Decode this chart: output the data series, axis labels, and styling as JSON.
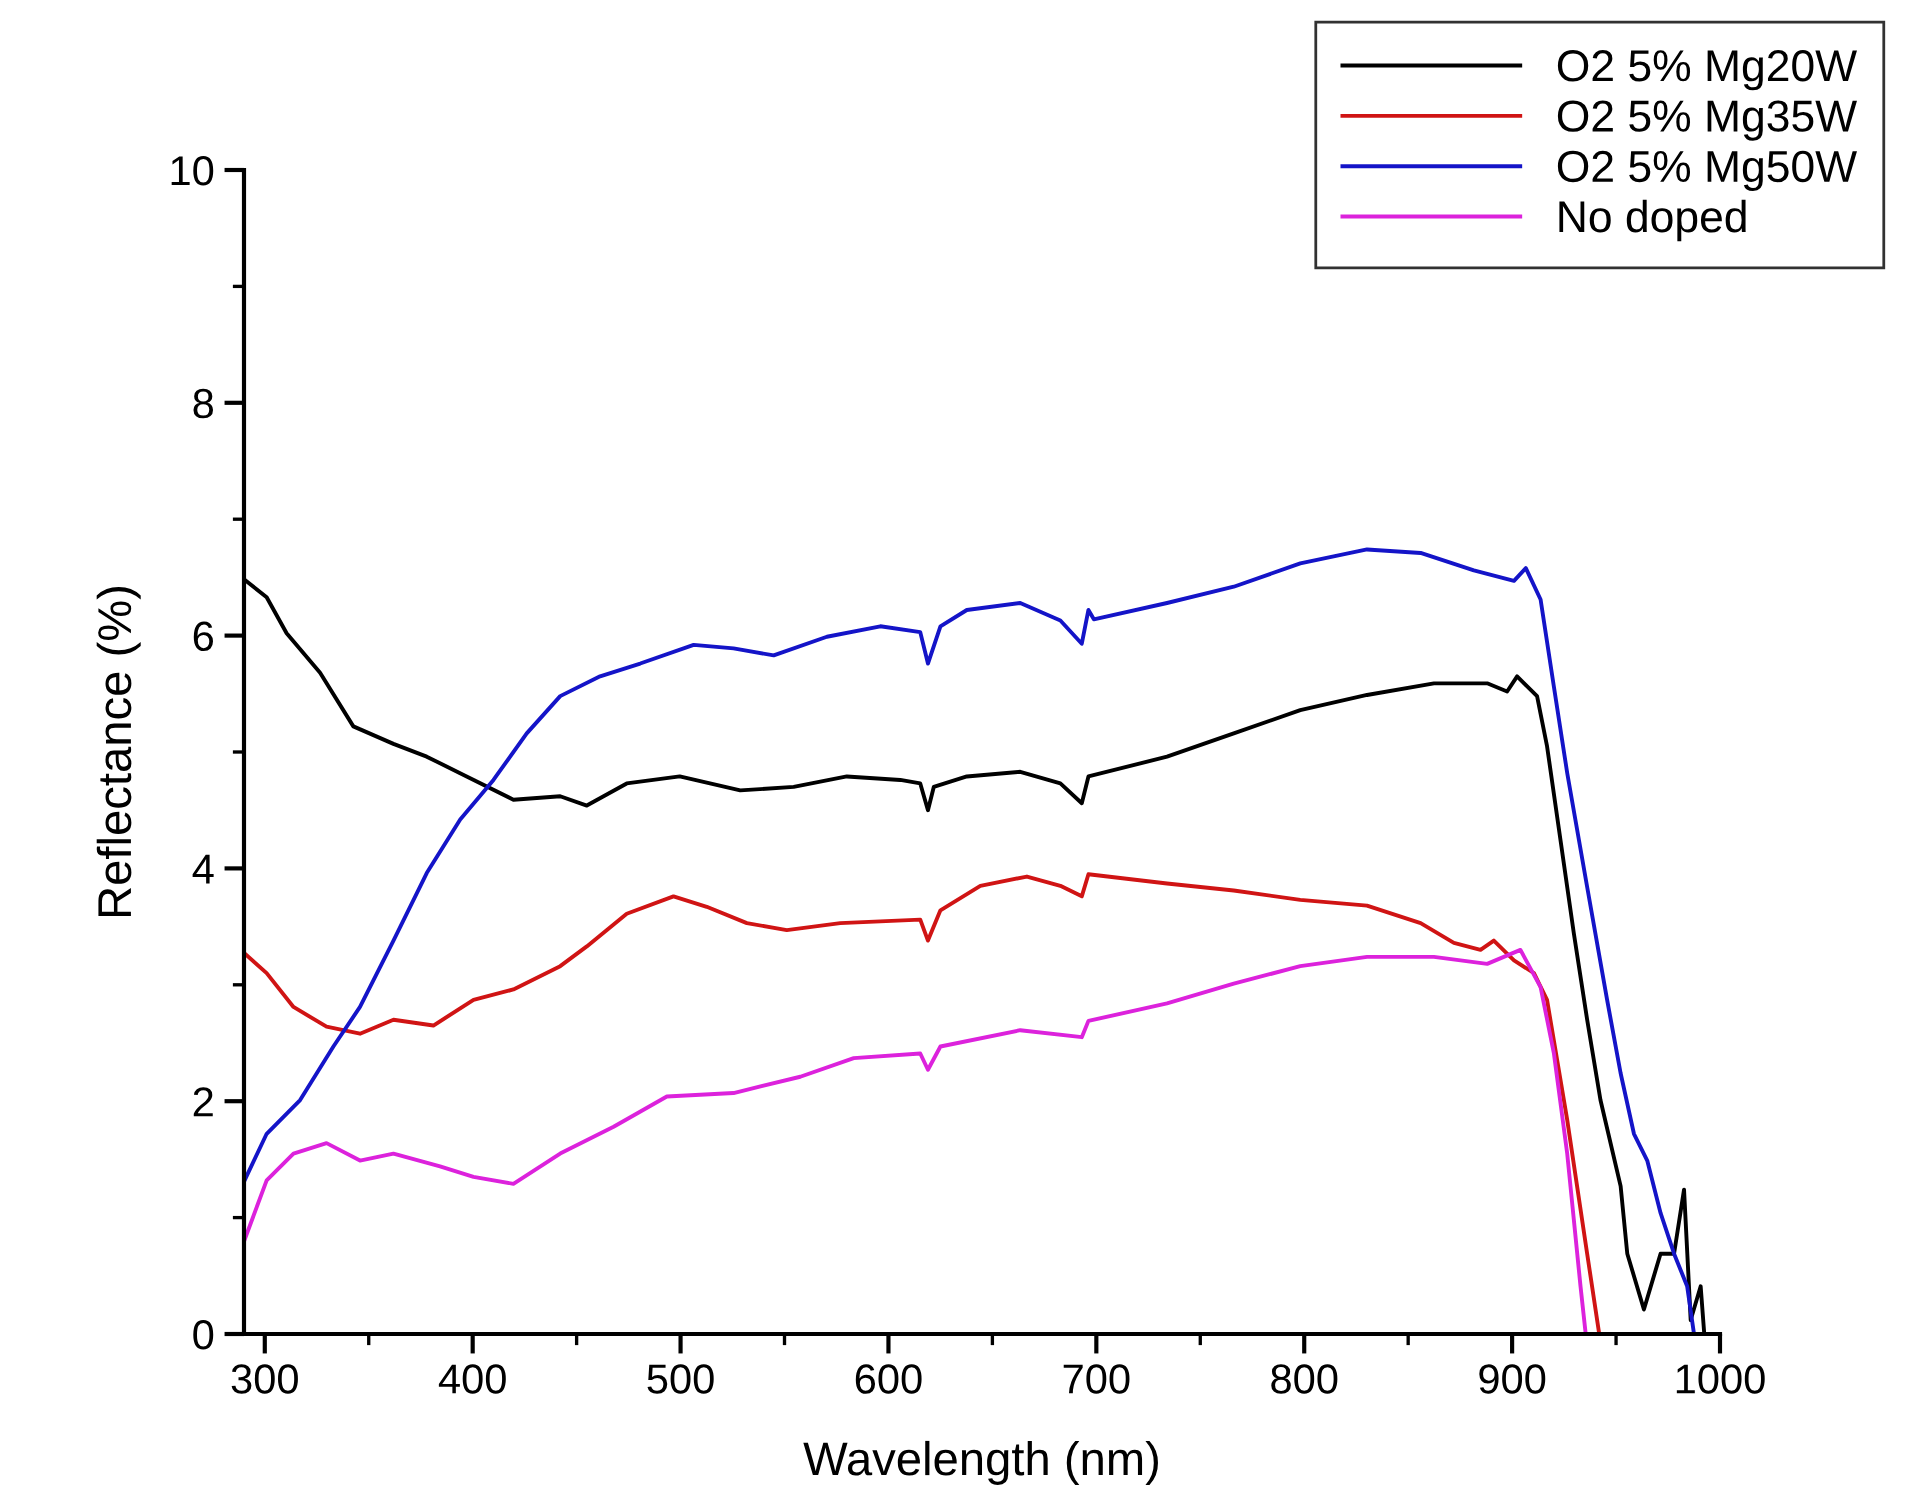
{
  "chart_data": {
    "type": "line",
    "xlabel": "Wavelength (nm)",
    "ylabel": "Reflectance (%)",
    "xlim": [
      290,
      1000
    ],
    "xticks": [
      300,
      400,
      500,
      600,
      700,
      800,
      900,
      1000
    ],
    "ylim": [
      0,
      10
    ],
    "yticks": [
      0,
      2,
      4,
      6,
      8,
      10
    ],
    "grid": false,
    "legend": "top right",
    "marker": "none",
    "line_style": "solid",
    "series": [
      {
        "name": "O2 5% Mg20W",
        "color": "#000000",
        "x": [
          290.3,
          300.9,
          310.5,
          326.6,
          342.6,
          361.9,
          377.9,
          397.1,
          419.6,
          442.1,
          454.9,
          474.1,
          499.6,
          528.7,
          554.4,
          580,
          605.7,
          615.3,
          619,
          621.8,
          637.7,
          663.4,
          682.7,
          693,
          696.2,
          734,
          766.1,
          798.1,
          830.2,
          862.4,
          888,
          897.6,
          902.4,
          912,
          916.8,
          923.3,
          929.7,
          936.1,
          942.5,
          952.2,
          955.4,
          963.4,
          971.4,
          977.9,
          982.7,
          985.9,
          990.7,
          992.3
        ],
        "values": [
          6.48,
          6.33,
          6.02,
          5.68,
          5.22,
          5.07,
          4.96,
          4.79,
          4.59,
          4.62,
          4.54,
          4.73,
          4.79,
          4.67,
          4.7,
          4.79,
          4.76,
          4.73,
          4.5,
          4.7,
          4.79,
          4.83,
          4.73,
          4.56,
          4.79,
          4.96,
          5.16,
          5.36,
          5.49,
          5.59,
          5.59,
          5.52,
          5.65,
          5.48,
          5.05,
          4.24,
          3.44,
          2.7,
          2.01,
          1.27,
          0.69,
          0.21,
          0.69,
          0.69,
          1.24,
          0.12,
          0.41,
          0.03
        ]
      },
      {
        "name": "O2 5% Mg35W",
        "color": "#d01414",
        "x": [
          290.3,
          300.9,
          313.8,
          329.7,
          345.8,
          361.9,
          381.1,
          400.4,
          419.6,
          442.1,
          454.9,
          474.1,
          496.6,
          512.6,
          531.9,
          551.1,
          576.8,
          615.3,
          619,
          625,
          644.2,
          666.6,
          682.7,
          693,
          696.2,
          734,
          766.1,
          798.1,
          830.2,
          856,
          872,
          884.8,
          891.2,
          900.9,
          910.5,
          916.8,
          926.5,
          936.1,
          941.9
        ],
        "values": [
          3.27,
          3.1,
          2.81,
          2.64,
          2.58,
          2.7,
          2.65,
          2.87,
          2.96,
          3.16,
          3.33,
          3.61,
          3.76,
          3.67,
          3.53,
          3.47,
          3.53,
          3.56,
          3.38,
          3.64,
          3.85,
          3.93,
          3.85,
          3.76,
          3.95,
          3.87,
          3.81,
          3.73,
          3.68,
          3.53,
          3.36,
          3.3,
          3.38,
          3.21,
          3.1,
          2.87,
          1.84,
          0.69,
          0
        ]
      },
      {
        "name": "O2 5% Mg50W",
        "color": "#1414c8",
        "x": [
          290.3,
          300.9,
          317,
          333,
          345.8,
          361.9,
          377.9,
          394,
          410,
          426,
          442.1,
          461.3,
          480.6,
          506.3,
          525.5,
          544.8,
          570.4,
          596.1,
          615.3,
          619,
          625,
          637.7,
          663.4,
          682.7,
          693,
          696.2,
          698.8,
          734,
          766.1,
          798.1,
          830.2,
          856,
          881.6,
          900.9,
          906.6,
          913.7,
          920.1,
          926.5,
          936.1,
          945.7,
          952.2,
          958.6,
          965,
          971.4,
          977.9,
          984.2,
          987.5
        ],
        "values": [
          1.32,
          1.72,
          2.01,
          2.47,
          2.81,
          3.38,
          3.96,
          4.42,
          4.76,
          5.16,
          5.48,
          5.65,
          5.76,
          5.92,
          5.89,
          5.83,
          5.99,
          6.08,
          6.03,
          5.76,
          6.08,
          6.22,
          6.28,
          6.13,
          5.93,
          6.22,
          6.14,
          6.28,
          6.42,
          6.62,
          6.74,
          6.71,
          6.56,
          6.47,
          6.58,
          6.31,
          5.56,
          4.82,
          3.84,
          2.87,
          2.24,
          1.72,
          1.49,
          1.04,
          0.69,
          0.41,
          0
        ]
      },
      {
        "name": "No doped",
        "color": "#dc22dc",
        "x": [
          290.3,
          300.9,
          313.8,
          329.7,
          345.8,
          361.9,
          384.3,
          400.4,
          419.6,
          442.1,
          467.8,
          493.4,
          525.5,
          557.6,
          583.3,
          615.3,
          619,
          625,
          663.4,
          693,
          696.2,
          734,
          766.1,
          798.1,
          830.2,
          862.4,
          888,
          904,
          913.7,
          920.1,
          926.5,
          932.9,
          935.4
        ],
        "values": [
          0.81,
          1.32,
          1.55,
          1.64,
          1.49,
          1.55,
          1.44,
          1.35,
          1.29,
          1.55,
          1.78,
          2.04,
          2.07,
          2.21,
          2.37,
          2.41,
          2.27,
          2.47,
          2.61,
          2.55,
          2.69,
          2.84,
          3.01,
          3.16,
          3.24,
          3.24,
          3.18,
          3.3,
          2.98,
          2.41,
          1.55,
          0.41,
          0
        ]
      }
    ]
  }
}
